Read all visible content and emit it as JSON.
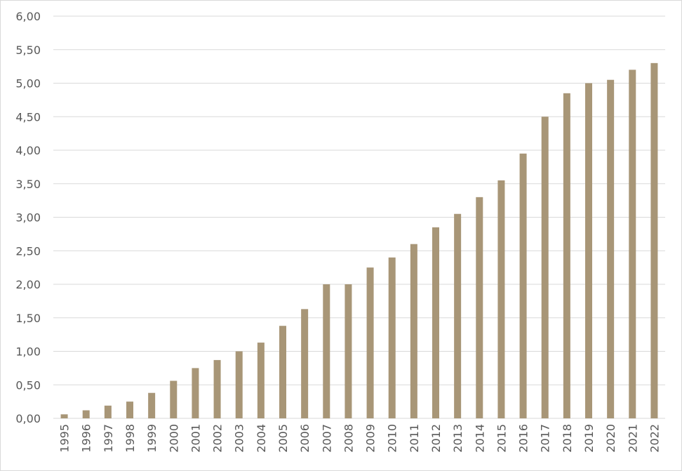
{
  "chart_data": {
    "type": "bar",
    "categories": [
      "1995",
      "1996",
      "1997",
      "1998",
      "1999",
      "2000",
      "2001",
      "2002",
      "2003",
      "2004",
      "2005",
      "2006",
      "2007",
      "2008",
      "2009",
      "2010",
      "2011",
      "2012",
      "2013",
      "2014",
      "2015",
      "2016",
      "2017",
      "2018",
      "2019",
      "2020",
      "2021",
      "2022"
    ],
    "values": [
      0.06,
      0.12,
      0.19,
      0.25,
      0.38,
      0.56,
      0.75,
      0.87,
      1.0,
      1.13,
      1.38,
      1.63,
      2.0,
      2.0,
      2.25,
      2.4,
      2.6,
      2.85,
      3.05,
      3.3,
      3.55,
      3.95,
      4.5,
      4.85,
      5.0,
      5.05,
      5.2,
      5.3
    ],
    "y_ticks": [
      "0,00",
      "0,50",
      "1,00",
      "1,50",
      "2,00",
      "2,50",
      "3,00",
      "3,50",
      "4,00",
      "4,50",
      "5,00",
      "5,50",
      "6,00"
    ],
    "title": "",
    "xlabel": "",
    "ylabel": "",
    "ylim": [
      0,
      6
    ],
    "grid": true,
    "legend": "none",
    "bar_color": "#a89677",
    "grid_color": "#d9d9d9",
    "label_color": "#595959"
  }
}
